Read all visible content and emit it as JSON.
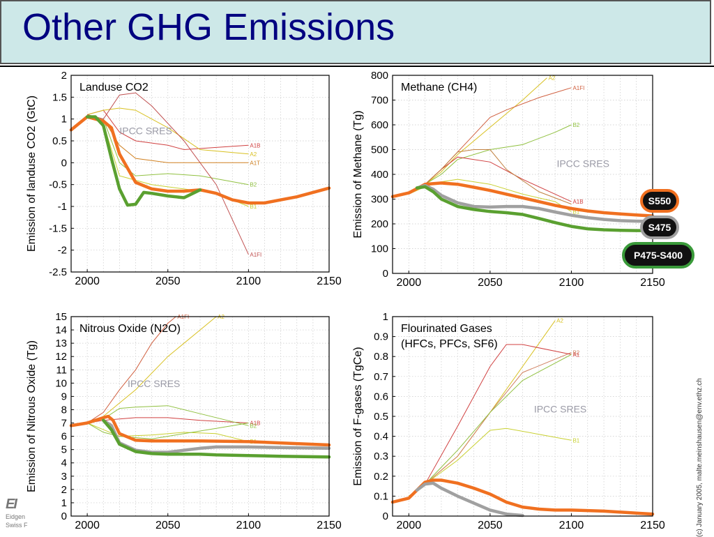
{
  "header": {
    "title": "Other GHG Emissions"
  },
  "copyright": "(c) January 2005, malte.meinshausen@env.ethz.ch",
  "logo": {
    "mark": "EI",
    "line1": "Eidgen",
    "line2": "Swiss F"
  },
  "badges": [
    {
      "label": "S550",
      "fill": "#111111",
      "border": "#f07020"
    },
    {
      "label": "S475",
      "fill": "#111111",
      "border": "#a0a0a0"
    },
    {
      "label": "P475-S400",
      "fill": "#111111",
      "border": "#3a9a3a"
    }
  ],
  "colors": {
    "orange": "#f07020",
    "gray": "#a0a0a0",
    "green": "#5aa030",
    "sres_label": "#9a9aa6"
  },
  "chart_data": [
    {
      "type": "line",
      "title": "Landuse CO2",
      "annotation": "IPCC SRES",
      "ylabel": "Emission of landuse CO2 (GtC)",
      "xlim": [
        1990,
        2150
      ],
      "ylim": [
        -2.5,
        2
      ],
      "xticks": [
        2000,
        2050,
        2100,
        2150
      ],
      "yticks": [
        2,
        1.5,
        1,
        0.5,
        0,
        -0.5,
        -1,
        -1.5,
        -2,
        -2.5
      ],
      "ytick_labels": [
        "2",
        "1.5",
        "1",
        "0.5",
        "0",
        "-0.5",
        "-1",
        "-1.5",
        "-2",
        "-2.5"
      ],
      "grid": true,
      "sres": [
        {
          "label": "A1B",
          "color": "#d04040",
          "x": [
            2000,
            2010,
            2020,
            2030,
            2050,
            2060,
            2100
          ],
          "y": [
            1.1,
            1.2,
            0.7,
            0.5,
            0.4,
            0.3,
            0.4
          ]
        },
        {
          "label": "A2",
          "color": "#d8c020",
          "x": [
            2000,
            2010,
            2020,
            2030,
            2050,
            2070,
            2100
          ],
          "y": [
            1.1,
            1.2,
            1.25,
            1.2,
            0.8,
            0.3,
            0.2
          ]
        },
        {
          "label": "A1T",
          "color": "#d08020",
          "x": [
            2000,
            2010,
            2020,
            2030,
            2050,
            2100
          ],
          "y": [
            1.1,
            1.0,
            0.4,
            0.1,
            0.0,
            0.0
          ]
        },
        {
          "label": "B2",
          "color": "#90c040",
          "x": [
            2000,
            2010,
            2020,
            2030,
            2050,
            2070,
            2100
          ],
          "y": [
            1.1,
            1.0,
            0.0,
            -0.3,
            -0.25,
            -0.3,
            -0.5
          ]
        },
        {
          "label": "B1",
          "color": "#c8d030",
          "x": [
            2000,
            2010,
            2020,
            2040,
            2060,
            2080,
            2100
          ],
          "y": [
            1.1,
            0.9,
            -0.3,
            -0.5,
            -0.6,
            -0.7,
            -1.0
          ]
        },
        {
          "label": "A1FI",
          "color": "#c05050",
          "x": [
            2000,
            2010,
            2020,
            2030,
            2040,
            2060,
            2080,
            2100
          ],
          "y": [
            1.1,
            1.0,
            1.55,
            1.6,
            1.3,
            0.5,
            -0.5,
            -2.1
          ]
        }
      ],
      "scenarios": [
        {
          "color": "#f07020",
          "x": [
            1990,
            2000,
            2010,
            2015,
            2020,
            2030,
            2040,
            2050,
            2060,
            2070,
            2080,
            2090,
            2100,
            2110,
            2120,
            2130,
            2140,
            2150
          ],
          "y": [
            0.75,
            1.05,
            0.95,
            0.8,
            0.2,
            -0.45,
            -0.6,
            -0.65,
            -0.65,
            -0.62,
            -0.7,
            -0.85,
            -0.92,
            -0.92,
            -0.85,
            -0.78,
            -0.68,
            -0.58
          ]
        },
        {
          "color": "#5aa030",
          "x": [
            2000,
            2005,
            2010,
            2015,
            2020,
            2025,
            2030,
            2035,
            2040,
            2050,
            2060,
            2070
          ],
          "y": [
            1.05,
            1.05,
            0.85,
            0.1,
            -0.6,
            -0.97,
            -0.95,
            -0.68,
            -0.7,
            -0.76,
            -0.8,
            -0.62
          ]
        }
      ]
    },
    {
      "type": "line",
      "title": "Methane (CH4)",
      "annotation": "IPCC SRES",
      "ylabel": "Emission of Methane (Tg)",
      "xlim": [
        1990,
        2150
      ],
      "ylim": [
        0,
        800
      ],
      "xticks": [
        2000,
        2050,
        2100,
        2150
      ],
      "yticks": [
        800,
        700,
        600,
        500,
        400,
        300,
        200,
        100,
        0
      ],
      "ytick_labels": [
        "800",
        "700",
        "600",
        "500",
        "400",
        "300",
        "200",
        "100",
        "0"
      ],
      "grid": true,
      "sres": [
        {
          "label": "A2",
          "color": "#d8c020",
          "x": [
            2000,
            2010,
            2020,
            2030,
            2050,
            2070,
            2085
          ],
          "y": [
            320,
            360,
            410,
            480,
            590,
            700,
            790
          ]
        },
        {
          "label": "A1FI",
          "color": "#d06040",
          "x": [
            2000,
            2010,
            2020,
            2040,
            2050,
            2060,
            2080,
            2100
          ],
          "y": [
            320,
            360,
            420,
            560,
            630,
            660,
            710,
            750
          ]
        },
        {
          "label": "B2",
          "color": "#90c040",
          "x": [
            2000,
            2010,
            2020,
            2030,
            2050,
            2070,
            2090,
            2100
          ],
          "y": [
            320,
            360,
            400,
            460,
            500,
            520,
            570,
            600
          ]
        },
        {
          "label": "A1B",
          "color": "#d04040",
          "x": [
            2000,
            2010,
            2020,
            2030,
            2050,
            2070,
            2090,
            2100
          ],
          "y": [
            320,
            360,
            420,
            470,
            450,
            380,
            320,
            290
          ]
        },
        {
          "label": "B1",
          "color": "#c8d030",
          "x": [
            2000,
            2010,
            2020,
            2030,
            2050,
            2070,
            2090,
            2100
          ],
          "y": [
            320,
            350,
            370,
            380,
            360,
            320,
            290,
            250
          ]
        },
        {
          "label": "",
          "color": "#c08040",
          "x": [
            2000,
            2010,
            2020,
            2030,
            2040,
            2050,
            2060,
            2080,
            2100
          ],
          "y": [
            320,
            360,
            420,
            490,
            500,
            500,
            420,
            330,
            280
          ]
        }
      ],
      "scenarios": [
        {
          "color": "#f07020",
          "x": [
            1990,
            2000,
            2010,
            2020,
            2030,
            2040,
            2050,
            2060,
            2070,
            2080,
            2090,
            2100,
            2110,
            2120,
            2130,
            2140,
            2150
          ],
          "y": [
            310,
            325,
            360,
            365,
            360,
            348,
            335,
            320,
            305,
            290,
            275,
            262,
            252,
            245,
            240,
            236,
            232
          ]
        },
        {
          "color": "#a0a0a0",
          "x": [
            2005,
            2010,
            2015,
            2020,
            2030,
            2040,
            2050,
            2060,
            2070,
            2080,
            2090,
            2100,
            2110,
            2120,
            2130,
            2140,
            2150
          ],
          "y": [
            345,
            355,
            340,
            315,
            285,
            270,
            268,
            270,
            270,
            262,
            248,
            235,
            225,
            218,
            213,
            211,
            210
          ]
        },
        {
          "color": "#5aa030",
          "x": [
            2005,
            2010,
            2015,
            2020,
            2030,
            2040,
            2050,
            2060,
            2070,
            2080,
            2090,
            2100,
            2110,
            2120,
            2130,
            2140,
            2150
          ],
          "y": [
            345,
            350,
            330,
            300,
            270,
            258,
            250,
            245,
            238,
            222,
            205,
            190,
            180,
            176,
            174,
            173,
            173
          ]
        }
      ]
    },
    {
      "type": "line",
      "title": "Nitrous Oxide (N2O)",
      "annotation": "IPCC SRES",
      "ylabel": "Emission of Nitrous Oxide (Tg)",
      "xlim": [
        1990,
        2150
      ],
      "ylim": [
        0,
        15
      ],
      "xticks": [
        2000,
        2050,
        2100,
        2150
      ],
      "yticks": [
        15,
        14,
        13,
        12,
        11,
        10,
        9,
        8,
        7,
        6,
        5,
        4,
        3,
        2,
        1,
        0
      ],
      "ytick_labels": [
        "15",
        "14",
        "13",
        "12",
        "11",
        "10",
        "9",
        "8",
        "7",
        "6",
        "5",
        "4",
        "3",
        "2",
        "1",
        "0"
      ],
      "grid": true,
      "sres": [
        {
          "label": "A2",
          "color": "#d8c020",
          "x": [
            2000,
            2010,
            2020,
            2030,
            2050,
            2070,
            2080
          ],
          "y": [
            7,
            7.5,
            8.5,
            9.5,
            12,
            14,
            15
          ]
        },
        {
          "label": "A1FI",
          "color": "#d06040",
          "x": [
            2000,
            2010,
            2020,
            2030,
            2040,
            2050,
            2055
          ],
          "y": [
            7,
            7.8,
            9.5,
            11,
            13,
            14.5,
            15
          ]
        },
        {
          "label": "A1B",
          "color": "#d04040",
          "x": [
            2000,
            2010,
            2020,
            2030,
            2050,
            2070,
            2100
          ],
          "y": [
            7,
            7.2,
            7.3,
            7.4,
            7.4,
            7.2,
            7.0
          ]
        },
        {
          "label": "B2",
          "color": "#90c040",
          "x": [
            2000,
            2010,
            2020,
            2030,
            2050,
            2070,
            2100
          ],
          "y": [
            7,
            7.3,
            8.1,
            8.2,
            8.3,
            7.7,
            6.8
          ]
        },
        {
          "label": "B1",
          "color": "#c8d030",
          "x": [
            2000,
            2010,
            2020,
            2040,
            2060,
            2080,
            2100
          ],
          "y": [
            7,
            6.5,
            6,
            6.1,
            6.3,
            6.2,
            5.6
          ]
        },
        {
          "label": "",
          "color": "#90c040",
          "x": [
            2000,
            2010,
            2020,
            2040,
            2060,
            2080,
            2100
          ],
          "y": [
            7,
            6.3,
            6,
            5.8,
            6.2,
            6.6,
            7.0
          ]
        }
      ],
      "scenarios": [
        {
          "color": "#f07020",
          "x": [
            1990,
            2000,
            2005,
            2010,
            2013,
            2016,
            2020,
            2030,
            2040,
            2050,
            2070,
            2100,
            2130,
            2150
          ],
          "y": [
            6.8,
            7.0,
            7.2,
            7.4,
            7.5,
            7.2,
            6.2,
            5.7,
            5.65,
            5.65,
            5.65,
            5.6,
            5.45,
            5.35
          ]
        },
        {
          "color": "#a0a0a0",
          "x": [
            2010,
            2015,
            2020,
            2030,
            2040,
            2050,
            2060,
            2070,
            2080,
            2090,
            2100,
            2120,
            2150
          ],
          "y": [
            7.2,
            6.8,
            5.5,
            4.95,
            4.8,
            4.8,
            4.95,
            5.1,
            5.2,
            5.2,
            5.2,
            5.15,
            5.1
          ]
        },
        {
          "color": "#5aa030",
          "x": [
            2010,
            2015,
            2020,
            2030,
            2040,
            2050,
            2060,
            2070,
            2080,
            2100,
            2120,
            2150
          ],
          "y": [
            7.2,
            6.5,
            5.4,
            4.85,
            4.7,
            4.65,
            4.65,
            4.65,
            4.6,
            4.55,
            4.5,
            4.45
          ]
        }
      ]
    },
    {
      "type": "line",
      "title": "Flourinated Gases",
      "subtitle": "(HFCs, PFCs, SF6)",
      "annotation": "IPCC SRES",
      "ylabel": "Emission of F-gases (TgCe)",
      "xlim": [
        1990,
        2150
      ],
      "ylim": [
        0,
        1
      ],
      "xticks": [
        2000,
        2050,
        2100,
        2150
      ],
      "yticks": [
        1,
        0.9,
        0.8,
        0.7,
        0.6,
        0.5,
        0.4,
        0.3,
        0.2,
        0.1,
        0
      ],
      "ytick_labels": [
        "1",
        "0.9",
        "0.8",
        "0.7",
        "0.6",
        "0.5",
        "0.4",
        "0.3",
        "0.2",
        "0.1",
        "0"
      ],
      "grid": true,
      "sres": [
        {
          "label": "A2",
          "color": "#d8c020",
          "x": [
            2000,
            2010,
            2030,
            2050,
            2070,
            2090
          ],
          "y": [
            0.1,
            0.16,
            0.3,
            0.52,
            0.75,
            0.98
          ]
        },
        {
          "label": "B2",
          "color": "#d08060",
          "x": [
            2000,
            2010,
            2030,
            2050,
            2070,
            2100
          ],
          "y": [
            0.1,
            0.16,
            0.3,
            0.52,
            0.72,
            0.82
          ]
        },
        {
          "label": "A1",
          "color": "#d04040",
          "x": [
            2000,
            2010,
            2030,
            2050,
            2060,
            2070,
            2100
          ],
          "y": [
            0.1,
            0.16,
            0.45,
            0.75,
            0.86,
            0.86,
            0.81
          ]
        },
        {
          "label": "",
          "color": "#90c040",
          "x": [
            2000,
            2010,
            2030,
            2050,
            2070,
            2100
          ],
          "y": [
            0.1,
            0.16,
            0.33,
            0.52,
            0.68,
            0.81
          ]
        },
        {
          "label": "B1",
          "color": "#c8d030",
          "x": [
            2000,
            2010,
            2030,
            2050,
            2060,
            2080,
            2100
          ],
          "y": [
            0.1,
            0.16,
            0.28,
            0.43,
            0.44,
            0.41,
            0.38
          ]
        }
      ],
      "scenarios": [
        {
          "color": "#f07020",
          "x": [
            1990,
            2000,
            2005,
            2010,
            2015,
            2020,
            2030,
            2040,
            2050,
            2060,
            2070,
            2080,
            2090,
            2100,
            2120,
            2140,
            2150
          ],
          "y": [
            0.07,
            0.09,
            0.13,
            0.17,
            0.18,
            0.18,
            0.165,
            0.14,
            0.11,
            0.07,
            0.045,
            0.035,
            0.03,
            0.03,
            0.025,
            0.015,
            0.01
          ]
        },
        {
          "color": "#a0a0a0",
          "x": [
            2005,
            2010,
            2015,
            2020,
            2030,
            2040,
            2050,
            2060,
            2070
          ],
          "y": [
            0.13,
            0.16,
            0.165,
            0.14,
            0.1,
            0.065,
            0.03,
            0.01,
            0.003
          ]
        }
      ]
    }
  ]
}
